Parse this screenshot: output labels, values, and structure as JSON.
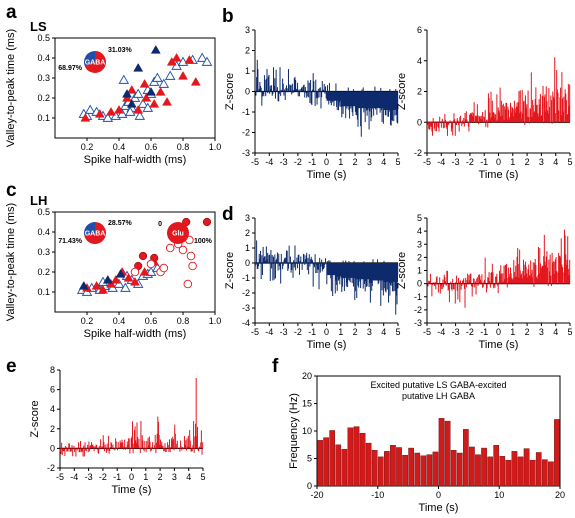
{
  "panels": {
    "a": "a",
    "b": "b",
    "c": "c",
    "d": "d",
    "e": "e",
    "f": "f"
  },
  "colors": {
    "red": "#e3171e",
    "navy": "#0d2a6c",
    "blue": "#1f4fa8",
    "grey": "#9aa5c0"
  },
  "chart_data": [
    {
      "id": "a",
      "type": "scatter",
      "sublabel": "LS",
      "xlabel": "Spike half-width (ms)",
      "ylabel": "Valley-to-peak time (ms)",
      "xlim": [
        0,
        1.0
      ],
      "ylim": [
        0,
        0.5
      ],
      "xticks": [
        "0.2",
        "0.4",
        "0.6",
        "0.8",
        "1.0"
      ],
      "yticks": [
        "0.1",
        "0.2",
        "0.3",
        "0.4",
        "0.5"
      ],
      "pie": {
        "label": "GABA",
        "values": [
          68.97,
          31.03
        ],
        "labels": [
          "68.97%",
          "31.03%"
        ],
        "colors": [
          "#e3171e",
          "#1f4fa8"
        ]
      },
      "series": [
        {
          "marker": "tri-open-blue",
          "points": [
            [
              0.18,
              0.12
            ],
            [
              0.2,
              0.11
            ],
            [
              0.22,
              0.14
            ],
            [
              0.26,
              0.13
            ],
            [
              0.3,
              0.11
            ],
            [
              0.33,
              0.1
            ],
            [
              0.38,
              0.11
            ],
            [
              0.42,
              0.12
            ],
            [
              0.44,
              0.16
            ],
            [
              0.46,
              0.18
            ],
            [
              0.48,
              0.15
            ],
            [
              0.5,
              0.2
            ],
            [
              0.52,
              0.22
            ],
            [
              0.55,
              0.17
            ],
            [
              0.58,
              0.24
            ],
            [
              0.6,
              0.22
            ],
            [
              0.62,
              0.28
            ],
            [
              0.64,
              0.3
            ],
            [
              0.68,
              0.27
            ],
            [
              0.72,
              0.31
            ],
            [
              0.76,
              0.36
            ],
            [
              0.8,
              0.38
            ],
            [
              0.86,
              0.39
            ],
            [
              0.92,
              0.4
            ],
            [
              0.95,
              0.38
            ],
            [
              0.43,
              0.29
            ],
            [
              0.47,
              0.13
            ],
            [
              0.53,
              0.11
            ],
            [
              0.58,
              0.15
            ]
          ]
        },
        {
          "marker": "tri-red",
          "points": [
            [
              0.19,
              0.1
            ],
            [
              0.28,
              0.12
            ],
            [
              0.35,
              0.13
            ],
            [
              0.4,
              0.14
            ],
            [
              0.45,
              0.2
            ],
            [
              0.48,
              0.24
            ],
            [
              0.52,
              0.14
            ],
            [
              0.57,
              0.2
            ],
            [
              0.62,
              0.17
            ],
            [
              0.66,
              0.23
            ],
            [
              0.7,
              0.18
            ],
            [
              0.73,
              0.38
            ],
            [
              0.76,
              0.4
            ],
            [
              0.8,
              0.31
            ],
            [
              0.84,
              0.39
            ],
            [
              0.88,
              0.28
            ],
            [
              0.56,
              0.27
            ]
          ]
        },
        {
          "marker": "tri-navy",
          "points": [
            [
              0.52,
              0.35
            ],
            [
              0.63,
              0.44
            ],
            [
              0.48,
              0.17
            ],
            [
              0.6,
              0.23
            ],
            [
              0.45,
              0.22
            ]
          ]
        }
      ]
    },
    {
      "id": "b1",
      "type": "bar",
      "xlabel": "Time (s)",
      "ylabel": "Z-score",
      "xlim": [
        -5,
        5
      ],
      "ylim": [
        -3,
        3
      ],
      "xticks": [
        "-5",
        "-4",
        "-3",
        "-2",
        "-1",
        "0",
        "1",
        "2",
        "3",
        "4",
        "5"
      ],
      "yticks": [
        "-3",
        "-2",
        "-1",
        "0",
        "1",
        "2",
        "3"
      ],
      "color": "#0d2a6c",
      "segments": [
        [
          -5,
          -4,
          0.3,
          1.8,
          -0.8
        ],
        [
          -4,
          -3,
          0.2,
          1.4,
          -0.6
        ],
        [
          -3,
          -2,
          0.2,
          1.3,
          -0.6
        ],
        [
          -2,
          -1,
          0.1,
          1.3,
          -0.8
        ],
        [
          -1,
          0,
          0.0,
          1.0,
          -1.0
        ],
        [
          0,
          1,
          -0.5,
          0.5,
          -1.6
        ],
        [
          1,
          2,
          -0.8,
          0.2,
          -2.3
        ],
        [
          2,
          3,
          -0.9,
          0.2,
          -2.6
        ],
        [
          3,
          4,
          -0.9,
          0.3,
          -2.5
        ],
        [
          4,
          5,
          -1.0,
          0.2,
          -2.8
        ]
      ]
    },
    {
      "id": "b2",
      "type": "bar",
      "xlabel": "Time (s)",
      "ylabel": "Z-score",
      "xlim": [
        -5,
        5
      ],
      "ylim": [
        -2,
        6
      ],
      "xticks": [
        "-5",
        "-4",
        "-3",
        "-2",
        "-1",
        "0",
        "1",
        "2",
        "3",
        "4",
        "5"
      ],
      "yticks": [
        "-2",
        "0",
        "2",
        "4",
        "6"
      ],
      "color": "#e3171e",
      "segments": [
        [
          -5,
          -4,
          -0.3,
          0.4,
          -1.0
        ],
        [
          -4,
          -3,
          -0.1,
          0.7,
          -0.9
        ],
        [
          -3,
          -2,
          0.1,
          1.2,
          -0.7
        ],
        [
          -2,
          -1,
          0.3,
          1.5,
          -0.5
        ],
        [
          -1,
          0,
          0.5,
          2.0,
          -0.4
        ],
        [
          0,
          1,
          0.7,
          2.3,
          -0.3
        ],
        [
          1,
          2,
          0.9,
          2.8,
          -0.2
        ],
        [
          2,
          3,
          1.1,
          3.3,
          -0.1
        ],
        [
          3,
          4,
          1.4,
          4.3,
          -0.1
        ],
        [
          4,
          5,
          1.5,
          4.8,
          0.0
        ]
      ]
    },
    {
      "id": "c",
      "type": "scatter",
      "sublabel": "LH",
      "xlabel": "Spike half-width (ms)",
      "ylabel": "Valley-to-peak time (ms)",
      "xlim": [
        0,
        1.0
      ],
      "ylim": [
        0,
        0.5
      ],
      "xticks": [
        "0.2",
        "0.4",
        "0.6",
        "0.8",
        "1.0"
      ],
      "yticks": [
        "0.1",
        "0.2",
        "0.3",
        "0.4",
        "0.5"
      ],
      "pie": {
        "label": "GABA",
        "values": [
          71.43,
          28.57
        ],
        "labels": [
          "71.43%",
          "28.57%"
        ],
        "colors": [
          "#e3171e",
          "#1f4fa8"
        ]
      },
      "pie2": {
        "label": "Glu",
        "values": [
          100,
          0
        ],
        "labels": [
          "100%",
          "0"
        ],
        "colors": [
          "#e3171e",
          "#1f4fa8"
        ]
      },
      "series": [
        {
          "marker": "tri-open-blue",
          "points": [
            [
              0.17,
              0.11
            ],
            [
              0.2,
              0.1
            ],
            [
              0.23,
              0.12
            ],
            [
              0.28,
              0.11
            ],
            [
              0.31,
              0.13
            ],
            [
              0.36,
              0.12
            ],
            [
              0.4,
              0.14
            ],
            [
              0.44,
              0.12
            ],
            [
              0.48,
              0.16
            ],
            [
              0.52,
              0.14
            ],
            [
              0.55,
              0.18
            ],
            [
              0.58,
              0.19
            ],
            [
              0.6,
              0.2
            ],
            [
              0.64,
              0.22
            ],
            [
              0.3,
              0.15
            ],
            [
              0.45,
              0.18
            ]
          ]
        },
        {
          "marker": "tri-red",
          "points": [
            [
              0.2,
              0.12
            ],
            [
              0.26,
              0.13
            ],
            [
              0.3,
              0.11
            ],
            [
              0.38,
              0.16
            ],
            [
              0.42,
              0.2
            ],
            [
              0.46,
              0.17
            ],
            [
              0.5,
              0.15
            ],
            [
              0.56,
              0.2
            ],
            [
              0.62,
              0.25
            ],
            [
              0.35,
              0.14
            ]
          ]
        },
        {
          "marker": "tri-navy",
          "points": [
            [
              0.18,
              0.13
            ],
            [
              0.33,
              0.16
            ],
            [
              0.41,
              0.19
            ]
          ]
        },
        {
          "marker": "circ-red",
          "points": [
            [
              0.52,
              0.23
            ],
            [
              0.55,
              0.28
            ],
            [
              0.62,
              0.27
            ],
            [
              0.78,
              0.38
            ],
            [
              0.82,
              0.45
            ],
            [
              0.95,
              0.45
            ]
          ]
        },
        {
          "marker": "circ-open-red",
          "points": [
            [
              0.5,
              0.2
            ],
            [
              0.6,
              0.24
            ],
            [
              0.66,
              0.2
            ],
            [
              0.72,
              0.32
            ],
            [
              0.77,
              0.34
            ],
            [
              0.8,
              0.31
            ],
            [
              0.84,
              0.36
            ],
            [
              0.85,
              0.28
            ],
            [
              0.86,
              0.23
            ],
            [
              0.83,
              0.14
            ],
            [
              0.68,
              0.22
            ]
          ]
        }
      ]
    },
    {
      "id": "d1",
      "type": "bar",
      "xlabel": "Time (s)",
      "ylabel": "Z-score",
      "xlim": [
        -5,
        5
      ],
      "ylim": [
        -4,
        3
      ],
      "xticks": [
        "-5",
        "-4",
        "-3",
        "-2",
        "-1",
        "0",
        "1",
        "2",
        "3",
        "4",
        "5"
      ],
      "yticks": [
        "-4",
        "-3",
        "-2",
        "-1",
        "0",
        "1",
        "2",
        "3"
      ],
      "color": "#0d2a6c",
      "segments": [
        [
          -5,
          -4,
          0.2,
          1.7,
          -1.2
        ],
        [
          -4,
          -3,
          0.1,
          1.0,
          -1.8
        ],
        [
          -3,
          -2,
          0.0,
          1.2,
          -1.2
        ],
        [
          -2,
          -1,
          0.1,
          1.4,
          -1.3
        ],
        [
          -1,
          0,
          -0.1,
          0.8,
          -1.8
        ],
        [
          0,
          1,
          -0.9,
          0.2,
          -2.3
        ],
        [
          1,
          2,
          -1.1,
          0.2,
          -2.6
        ],
        [
          2,
          3,
          -1.2,
          0.2,
          -3.0
        ],
        [
          3,
          4,
          -1.3,
          0.3,
          -3.3
        ],
        [
          4,
          5,
          -1.4,
          0.2,
          -3.6
        ]
      ]
    },
    {
      "id": "d2",
      "type": "bar",
      "xlabel": "Time (s)",
      "ylabel": "Z-score",
      "xlim": [
        -5,
        5
      ],
      "ylim": [
        -3,
        5
      ],
      "xticks": [
        "-5",
        "-4",
        "-3",
        "-2",
        "-1",
        "0",
        "1",
        "2",
        "3",
        "4",
        "5"
      ],
      "yticks": [
        "-3",
        "-2",
        "-1",
        "0",
        "1",
        "2",
        "3",
        "4",
        "5"
      ],
      "color": "#e3171e",
      "segments": [
        [
          -5,
          -4,
          0.0,
          1.1,
          -1.2
        ],
        [
          -4,
          -3,
          0.1,
          1.3,
          -1.6
        ],
        [
          -3,
          -2,
          0.0,
          1.2,
          -1.9
        ],
        [
          -2,
          -1,
          0.2,
          1.5,
          -1.1
        ],
        [
          -1,
          0,
          0.3,
          2.3,
          -0.8
        ],
        [
          0,
          1,
          0.8,
          2.6,
          -0.5
        ],
        [
          1,
          2,
          1.1,
          3.0,
          -0.4
        ],
        [
          2,
          3,
          1.2,
          3.4,
          -0.3
        ],
        [
          3,
          4,
          1.4,
          4.1,
          -0.2
        ],
        [
          4,
          5,
          1.6,
          4.4,
          0.0
        ]
      ]
    },
    {
      "id": "e",
      "type": "bar",
      "xlabel": "Time (s)",
      "ylabel": "Z-score",
      "xlim": [
        -5,
        5
      ],
      "ylim": [
        -2,
        8
      ],
      "xticks": [
        "-5",
        "-4",
        "-3",
        "-2",
        "-1",
        "0",
        "1",
        "2",
        "3",
        "4",
        "5"
      ],
      "yticks": [
        "-2",
        "0",
        "2",
        "4",
        "6",
        "8"
      ],
      "color": "#e3171e",
      "segments": [
        [
          -5,
          -4,
          0.0,
          1.0,
          -0.9
        ],
        [
          -4,
          -3,
          0.0,
          1.0,
          -0.9
        ],
        [
          -3,
          -2,
          0.0,
          1.2,
          -0.8
        ],
        [
          -2,
          -1,
          0.2,
          1.5,
          -0.8
        ],
        [
          -1,
          0,
          0.4,
          2.2,
          -0.6
        ],
        [
          0,
          1,
          0.6,
          3.0,
          -0.5
        ],
        [
          1,
          2,
          0.6,
          3.6,
          -0.5
        ],
        [
          2,
          3,
          0.4,
          3.2,
          -0.5
        ],
        [
          3,
          4,
          0.6,
          4.0,
          -0.5
        ],
        [
          4,
          5,
          1.0,
          7.6,
          -0.4
        ]
      ]
    },
    {
      "id": "f",
      "type": "bar",
      "title": "Excited putative LS GABA-excited\nputative LH GABA",
      "xlabel": "Time (s)",
      "ylabel": "Frequency (Hz)",
      "xlim": [
        -20,
        20
      ],
      "ylim": [
        0,
        20
      ],
      "xticks": [
        "-20",
        "-10",
        "0",
        "10",
        "20"
      ],
      "yticks": [
        "0",
        "5",
        "10",
        "15",
        "20"
      ],
      "color": "#d21a1a",
      "bin_width": 1,
      "bins_start": -20,
      "values": [
        8.3,
        8.8,
        10.1,
        7.5,
        6.7,
        10.6,
        10.8,
        9.6,
        7.8,
        6.5,
        5.3,
        6.3,
        7.4,
        7.0,
        5.6,
        6.9,
        6.0,
        5.5,
        5.7,
        6.2,
        12.3,
        11.8,
        6.5,
        6.0,
        10.3,
        7.1,
        5.7,
        6.9,
        5.3,
        7.4,
        5.4,
        4.7,
        6.3,
        5.3,
        6.8,
        4.7,
        6.1,
        4.8,
        4.4,
        12.1
      ]
    }
  ]
}
